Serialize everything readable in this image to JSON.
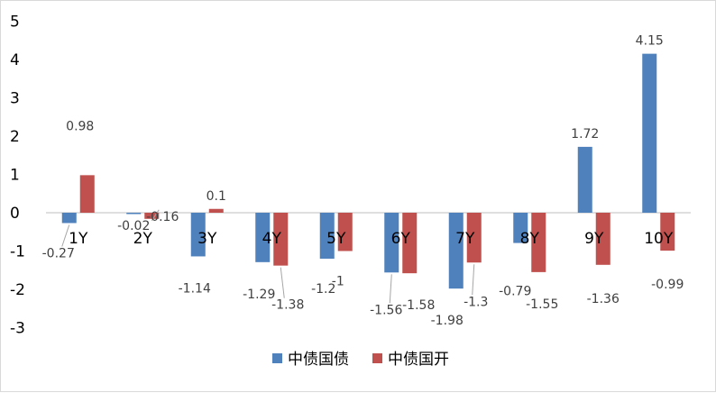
{
  "chart_data": {
    "type": "bar",
    "categories": [
      "1Y",
      "2Y",
      "3Y",
      "4Y",
      "5Y",
      "6Y",
      "7Y",
      "8Y",
      "9Y",
      "10Y"
    ],
    "series": [
      {
        "name": "中债国债",
        "color": "#4f81bd",
        "values": [
          -0.27,
          -0.02,
          -1.14,
          -1.29,
          -1.2,
          -1.56,
          -1.98,
          -0.79,
          1.72,
          4.15
        ],
        "labels": [
          "-0.27",
          "-0.02",
          "-1.14",
          "-1.29",
          "-1.2",
          "-1.56",
          "-1.98",
          "-0.79",
          "1.72",
          "4.15"
        ]
      },
      {
        "name": "中债国开",
        "color": "#c0504d",
        "values": [
          0.98,
          -0.16,
          0.1,
          -1.38,
          -1,
          -1.58,
          -1.3,
          -1.55,
          -1.36,
          -0.99
        ],
        "labels": [
          "0.98",
          "-0.16",
          "0.1",
          "-1.38",
          "-1",
          "-1.58",
          "-1.3",
          "-1.55",
          "-1.36",
          "-0.99"
        ]
      }
    ],
    "yticks": [
      "5",
      "4",
      "3",
      "2",
      "1",
      "0",
      "-1",
      "-2",
      "-3"
    ],
    "ylim": [
      -3,
      5
    ],
    "grid": false,
    "legend": "bottom"
  }
}
